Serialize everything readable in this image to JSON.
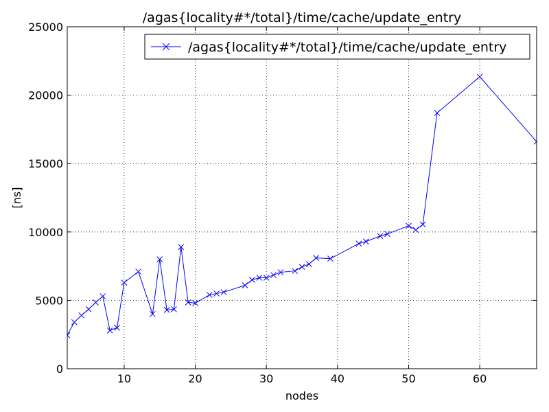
{
  "chart_data": {
    "type": "line",
    "title": "/agas{locality#*/total}/time/cache/update_entry",
    "xlabel": "nodes",
    "ylabel": "[ns]",
    "xlim": [
      2,
      68
    ],
    "ylim": [
      0,
      25000
    ],
    "xticks": [
      10,
      20,
      30,
      40,
      50,
      60
    ],
    "yticks": [
      0,
      5000,
      10000,
      15000,
      20000,
      25000
    ],
    "grid": true,
    "legend_position": "top-right",
    "series_color": "#0000ff",
    "marker": "x",
    "series": [
      {
        "name": "/agas{locality#*/total}/time/cache/update_entry",
        "x": [
          2,
          3,
          4,
          5,
          6,
          7,
          8,
          9,
          10,
          12,
          14,
          15,
          16,
          17,
          18,
          19,
          20,
          22,
          23,
          24,
          27,
          28,
          29,
          30,
          31,
          32,
          34,
          35,
          36,
          37,
          39,
          43,
          44,
          46,
          47,
          50,
          51,
          52,
          54,
          60,
          68
        ],
        "values": [
          2450,
          3400,
          3900,
          4350,
          4850,
          5300,
          2800,
          3000,
          6300,
          7100,
          4000,
          8000,
          4300,
          4350,
          8900,
          4850,
          4800,
          5400,
          5500,
          5600,
          6100,
          6500,
          6650,
          6650,
          6850,
          7050,
          7150,
          7450,
          7650,
          8100,
          8050,
          9150,
          9300,
          9700,
          9850,
          10450,
          10150,
          10550,
          18700,
          21350,
          16600
        ]
      }
    ]
  }
}
